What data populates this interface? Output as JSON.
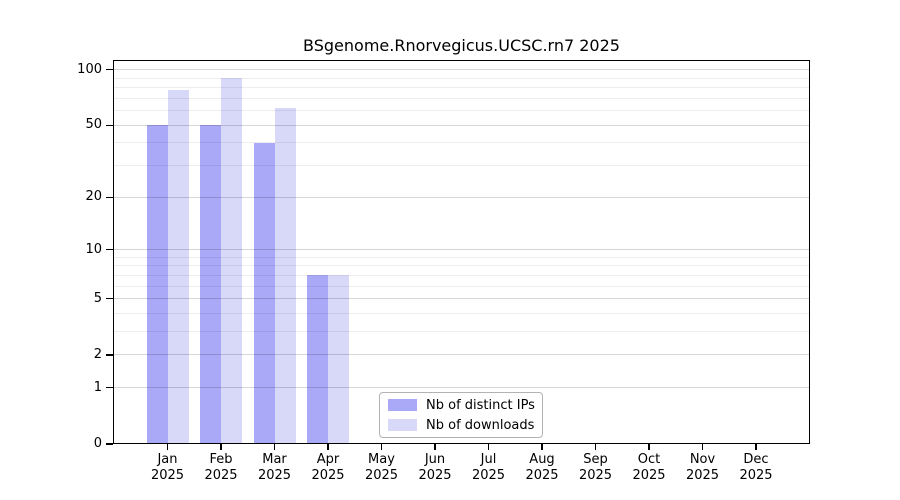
{
  "chart_data": {
    "type": "bar",
    "title": "BSgenome.Rnorvegicus.UCSC.rn7 2025",
    "categories": [
      "Jan",
      "Feb",
      "Mar",
      "Apr",
      "May",
      "Jun",
      "Jul",
      "Aug",
      "Sep",
      "Oct",
      "Nov",
      "Dec"
    ],
    "x_sub_label": "2025",
    "series": [
      {
        "name": "Nb of distinct IPs",
        "color": "#a9a9f7",
        "values": [
          50,
          50,
          40,
          7,
          0,
          0,
          0,
          0,
          0,
          0,
          0,
          0
        ]
      },
      {
        "name": "Nb of downloads",
        "color": "#d8d8f9",
        "values": [
          78,
          90,
          62,
          7,
          0,
          0,
          0,
          0,
          0,
          0,
          0,
          0
        ]
      }
    ],
    "yaxis": {
      "scale": "log1p",
      "major_ticks": [
        0,
        1,
        2,
        5,
        10,
        20,
        50,
        100
      ],
      "minor_ticks": [
        3,
        4,
        6,
        7,
        8,
        9,
        30,
        40,
        60,
        70,
        80,
        90
      ],
      "max": 113
    },
    "legend": {
      "position": "bottom-center"
    },
    "grid": true,
    "colors": {
      "major_grid": "rgba(0,0,0,0.16)",
      "minor_grid": "rgba(0,0,0,0.07)",
      "frame": "#000000",
      "legend_border": "#b3b3b3"
    }
  }
}
